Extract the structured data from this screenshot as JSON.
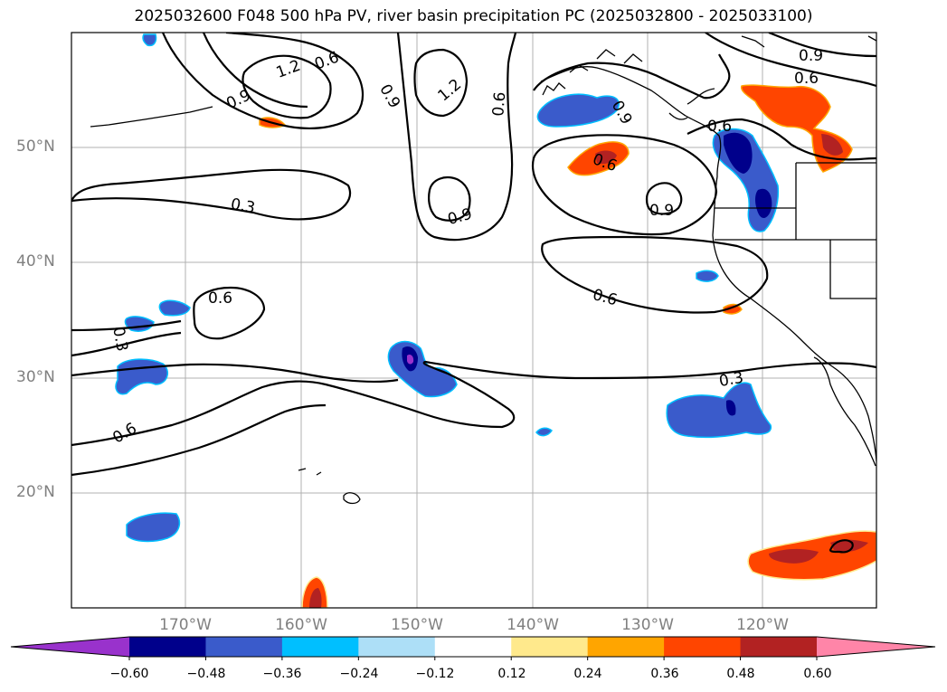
{
  "title": "2025032600 F048 500 hPa PV, river basin precipitation PC (2025032800 - 2025033100)",
  "map": {
    "lat_labels": [
      "50°N",
      "40°N",
      "30°N",
      "20°N"
    ],
    "lon_labels": [
      "170°W",
      "160°W",
      "150°W",
      "140°W",
      "130°W",
      "120°W"
    ],
    "contour_labels": [
      "1.2",
      "0.6",
      "0.9",
      "0.9",
      "1.2",
      "0.6",
      "0.9",
      "0.6",
      "0.6",
      "0.9",
      "0.3",
      "0.9",
      "0.9",
      "0.6",
      "0.6",
      "0.6",
      "0.3",
      "0.3",
      "0.6"
    ]
  },
  "colorbar": {
    "ticks": [
      "−0.60",
      "−0.48",
      "−0.36",
      "−0.24",
      "−0.12",
      "0.12",
      "0.24",
      "0.36",
      "0.48",
      "0.60"
    ],
    "colors": [
      "#9932CC",
      "#00008B",
      "#3A5BCB",
      "#00BFFF",
      "#ADDFF7",
      "#FFFFFF",
      "#FFE98C",
      "#FFA500",
      "#FF4500",
      "#B22222",
      "#FF85A8"
    ]
  }
}
